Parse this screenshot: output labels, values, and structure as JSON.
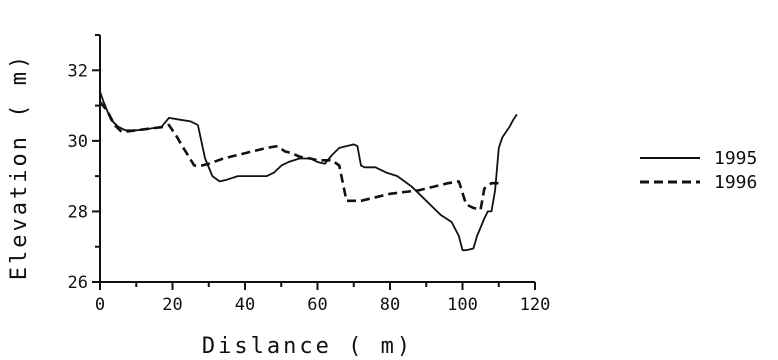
{
  "chart_data": {
    "type": "line",
    "title": "",
    "xlabel": "Dislance ( m)",
    "ylabel": "Elevation ( m)",
    "xlim": [
      0,
      120
    ],
    "ylim": [
      26,
      33
    ],
    "xticks": [
      0,
      20,
      40,
      60,
      80,
      100,
      120
    ],
    "xtick_labels": [
      "0",
      "20",
      "40",
      "60",
      "80",
      "100",
      "120"
    ],
    "yticks": [
      26,
      28,
      30,
      32
    ],
    "ytick_labels": [
      "26",
      "28",
      "30",
      "32"
    ],
    "grid": false,
    "legend_position": "right",
    "series": [
      {
        "name": "1995",
        "style": "solid",
        "color": "#111111",
        "x": [
          0,
          1,
          3,
          5,
          7,
          10,
          14,
          17,
          19,
          22,
          25,
          27,
          29,
          31,
          33,
          35,
          38,
          42,
          46,
          48,
          50,
          52,
          55,
          58,
          60,
          62,
          64,
          66,
          68,
          70,
          71,
          72,
          73,
          76,
          79,
          82,
          86,
          90,
          94,
          97,
          99,
          100,
          101,
          103,
          104,
          106,
          107,
          108,
          109,
          110,
          111,
          113,
          114,
          115
        ],
        "y": [
          31.4,
          31.1,
          30.6,
          30.4,
          30.3,
          30.3,
          30.35,
          30.4,
          30.65,
          30.6,
          30.55,
          30.45,
          29.5,
          29.0,
          28.85,
          28.9,
          29.0,
          29.0,
          29.0,
          29.1,
          29.3,
          29.4,
          29.5,
          29.5,
          29.4,
          29.35,
          29.6,
          29.8,
          29.85,
          29.9,
          29.85,
          29.3,
          29.25,
          29.25,
          29.1,
          29.0,
          28.7,
          28.3,
          27.9,
          27.7,
          27.3,
          26.9,
          26.9,
          26.95,
          27.3,
          27.8,
          28.0,
          28.0,
          28.6,
          29.8,
          30.1,
          30.4,
          30.6,
          30.75
        ]
      },
      {
        "name": "1996",
        "style": "dashed",
        "color": "#111111",
        "x": [
          0,
          2,
          4,
          6,
          10,
          14,
          18,
          19,
          21,
          23,
          26,
          28,
          30,
          34,
          38,
          42,
          46,
          49,
          51,
          53,
          55,
          58,
          60,
          62,
          64,
          66,
          68,
          69,
          72,
          76,
          80,
          84,
          88,
          92,
          96,
          99,
          101,
          103,
          105,
          106,
          108,
          110
        ],
        "y": [
          31.1,
          30.85,
          30.45,
          30.25,
          30.3,
          30.35,
          30.4,
          30.45,
          30.15,
          29.8,
          29.3,
          29.3,
          29.35,
          29.5,
          29.6,
          29.7,
          29.8,
          29.85,
          29.7,
          29.65,
          29.55,
          29.5,
          29.45,
          29.45,
          29.45,
          29.3,
          28.3,
          28.3,
          28.3,
          28.4,
          28.5,
          28.55,
          28.6,
          28.7,
          28.8,
          28.85,
          28.2,
          28.1,
          28.05,
          28.65,
          28.8,
          28.8
        ]
      }
    ]
  }
}
